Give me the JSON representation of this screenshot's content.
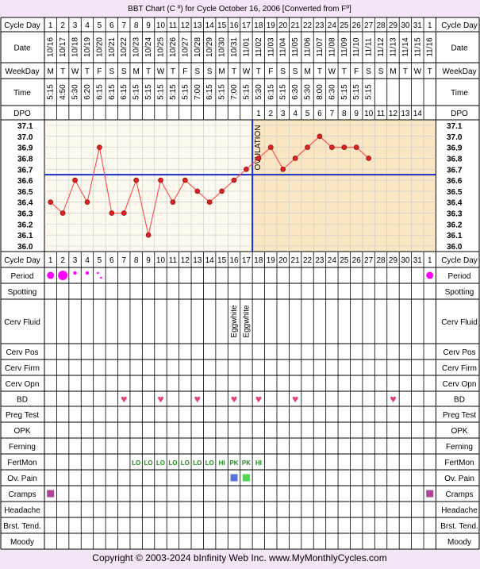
{
  "title": "BBT Chart (C º) for Cycle October 16, 2006  [Converted from Fº]",
  "copyright": "Copyright © 2003-2024 bInfinity Web Inc.     www.MyMonthlyCycles.com",
  "row_labels": {
    "cycle_day": "Cycle Day",
    "date": "Date",
    "weekday": "WeekDay",
    "time": "Time",
    "dpo": "DPO",
    "period": "Period",
    "spotting": "Spotting",
    "cerv_fluid": "Cerv Fluid",
    "cerv_pos": "Cerv Pos",
    "cerv_firm": "Cerv Firm",
    "cerv_opn": "Cerv Opn",
    "bd": "BD",
    "preg_test": "Preg Test",
    "opk": "OPK",
    "ferning": "Ferning",
    "fertmon": "FertMon",
    "ov_pain": "Ov. Pain",
    "cramps": "Cramps",
    "headache": "Headache",
    "brst_tend": "Brst. Tend.",
    "moody": "Moody"
  },
  "ovulation_label": "OVULATION",
  "cycle_days": [
    "1",
    "2",
    "3",
    "4",
    "5",
    "6",
    "7",
    "8",
    "9",
    "10",
    "11",
    "12",
    "13",
    "14",
    "15",
    "16",
    "17",
    "18",
    "19",
    "20",
    "21",
    "22",
    "23",
    "24",
    "25",
    "26",
    "27",
    "28",
    "29",
    "30",
    "31",
    "1"
  ],
  "dates": [
    "10/16",
    "10/17",
    "10/18",
    "10/19",
    "10/20",
    "10/21",
    "10/22",
    "10/23",
    "10/24",
    "10/25",
    "10/26",
    "10/27",
    "10/28",
    "10/29",
    "10/30",
    "10/31",
    "11/01",
    "11/02",
    "11/03",
    "11/04",
    "11/05",
    "11/06",
    "11/07",
    "11/08",
    "11/09",
    "11/10",
    "11/11",
    "11/12",
    "11/13",
    "11/14",
    "11/15",
    "11/16"
  ],
  "weekdays": [
    "M",
    "T",
    "W",
    "T",
    "F",
    "S",
    "S",
    "M",
    "T",
    "W",
    "T",
    "F",
    "S",
    "S",
    "M",
    "T",
    "W",
    "T",
    "F",
    "S",
    "S",
    "M",
    "T",
    "W",
    "T",
    "F",
    "S",
    "S",
    "M",
    "T",
    "W",
    "T"
  ],
  "times": [
    "5:15",
    "4:50",
    "5:30",
    "6:20",
    "6:15",
    "6:15",
    "6:15",
    "5:15",
    "5:15",
    "5:15",
    "5:15",
    "5:15",
    "7:00",
    "6:15",
    "5:15",
    "7:00",
    "5:15",
    "5:30",
    "6:15",
    "5:15",
    "6:30",
    "5:30",
    "8:00",
    "6:30",
    "5:15",
    "5:15",
    "5:15",
    "",
    "",
    "",
    "",
    ""
  ],
  "dpo": [
    "",
    "",
    "",
    "",
    "",
    "",
    "",
    "",
    "",
    "",
    "",
    "",
    "",
    "",
    "",
    "",
    "",
    "1",
    "2",
    "3",
    "4",
    "5",
    "6",
    "7",
    "8",
    "9",
    "10",
    "11",
    "12",
    "13",
    "14",
    ""
  ],
  "y_ticks": [
    "37.1",
    "37.0",
    "36.9",
    "36.8",
    "36.7",
    "36.6",
    "36.5",
    "36.4",
    "36.3",
    "36.2",
    "36.1",
    "36.0"
  ],
  "cerv_fluid": [
    "",
    "",
    "",
    "",
    "",
    "",
    "",
    "",
    "",
    "",
    "",
    "",
    "",
    "",
    "",
    "Eggwhite",
    "Eggwhite",
    "",
    "",
    "",
    "",
    "",
    "",
    "",
    "",
    "",
    "",
    "",
    "",
    "",
    "",
    ""
  ],
  "period": [
    4,
    5,
    2,
    2,
    1,
    0,
    0,
    0,
    0,
    0,
    0,
    0,
    0,
    0,
    0,
    0,
    0,
    0,
    0,
    0,
    0,
    0,
    0,
    0,
    0,
    0,
    0,
    0,
    0,
    0,
    0,
    4
  ],
  "bd_days": [
    7,
    10,
    13,
    16,
    18,
    21,
    29
  ],
  "fertmon": [
    "",
    "",
    "",
    "",
    "",
    "",
    "",
    "LO",
    "LO",
    "LO",
    "LO",
    "LO",
    "LO",
    "LO",
    "HI",
    "PK",
    "PK",
    "HI",
    "",
    "",
    "",
    "",
    "",
    "",
    "",
    "",
    "",
    "",
    "",
    "",
    "",
    ""
  ],
  "ov_pain": [
    16,
    17
  ],
  "cramps": [
    1,
    32
  ],
  "colors": {
    "background": "#f3e6f6",
    "chart_bg": "#fdf9ef",
    "luteal_bg": "#fbe6c4",
    "line": "#ff3b3b",
    "point": "#dd2222",
    "coverline": "#1a2fbf",
    "period": "#ff00ff",
    "bd": "#e0437a",
    "fertmon": "#1f8a1f",
    "ov_pain_1": "#5c74d6",
    "ov_pain_2": "#55d455",
    "cramps": "#b0449a"
  },
  "chart_data": {
    "type": "line",
    "title": "BBT Chart (C º) for Cycle October 16, 2006  [Converted from Fº]",
    "x": [
      1,
      2,
      3,
      4,
      5,
      6,
      7,
      8,
      9,
      10,
      11,
      12,
      13,
      14,
      15,
      16,
      17,
      18,
      19,
      20,
      21,
      22,
      23,
      24,
      25,
      26,
      27
    ],
    "y": [
      36.4,
      36.3,
      36.6,
      36.4,
      36.9,
      36.3,
      36.3,
      36.6,
      36.1,
      36.6,
      36.4,
      36.6,
      36.5,
      36.4,
      36.5,
      36.6,
      36.7,
      36.8,
      36.9,
      36.7,
      36.8,
      36.9,
      37.0,
      36.9,
      36.9,
      36.9,
      36.8
    ],
    "ylim": [
      36.0,
      37.1
    ],
    "coverline": 36.65,
    "ovulation_day": 17,
    "grid": true
  }
}
